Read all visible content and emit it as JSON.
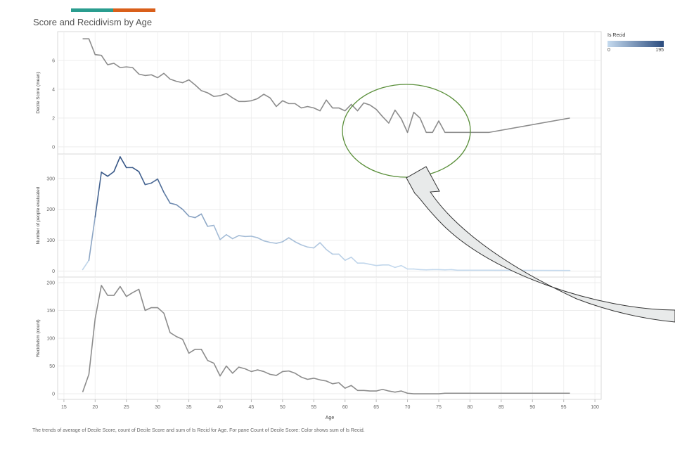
{
  "title": "Score and Recidivism by Age",
  "caption": "The trends of average of Decile Score, count of Decile Score and sum of Is Recid for Age.  For pane Count of Decile Score:  Color shows sum of Is Recid.",
  "accent_colors": [
    "#2a9d8f",
    "#d95f1a"
  ],
  "legend": {
    "title": "Is Recid",
    "min_label": "0",
    "max_label": "195",
    "color_low": "#c6dbef",
    "color_high": "#2b4c7e"
  },
  "annotation": {
    "ellipse_color": "#5a8f3a",
    "arrow_fill": "#e8eaea",
    "arrow_stroke": "#333333"
  },
  "chart_data": {
    "type": "line",
    "x_label": "Age",
    "x_range": [
      14,
      101
    ],
    "x_ticks": [
      "15",
      "20",
      "25",
      "30",
      "35",
      "40",
      "45",
      "50",
      "55",
      "60",
      "65",
      "70",
      "75",
      "80",
      "85",
      "90",
      "95",
      "100"
    ],
    "ages": [
      18,
      19,
      20,
      21,
      22,
      23,
      24,
      25,
      26,
      27,
      28,
      29,
      30,
      31,
      32,
      33,
      34,
      35,
      36,
      37,
      38,
      39,
      40,
      41,
      42,
      43,
      44,
      45,
      46,
      47,
      48,
      49,
      50,
      51,
      52,
      53,
      54,
      55,
      56,
      57,
      58,
      59,
      60,
      61,
      62,
      63,
      64,
      65,
      66,
      67,
      68,
      69,
      70,
      71,
      72,
      73,
      74,
      75,
      76,
      77,
      78,
      79,
      80,
      83,
      96
    ],
    "panes": [
      {
        "ylabel": "Decile Score (mean)",
        "yrange": [
          -0.3,
          7.8
        ],
        "yticks": [
          "0",
          "2",
          "4",
          "6"
        ],
        "line_color": "#8c8c8c",
        "values": [
          7.5,
          7.5,
          6.4,
          6.35,
          5.7,
          5.8,
          5.5,
          5.55,
          5.5,
          5.05,
          4.95,
          5.0,
          4.8,
          5.1,
          4.7,
          4.55,
          4.45,
          4.65,
          4.3,
          3.9,
          3.75,
          3.5,
          3.55,
          3.7,
          3.4,
          3.15,
          3.15,
          3.2,
          3.35,
          3.65,
          3.4,
          2.8,
          3.2,
          3.0,
          3.0,
          2.7,
          2.8,
          2.7,
          2.5,
          3.25,
          2.7,
          2.7,
          2.5,
          2.95,
          2.5,
          3.05,
          2.9,
          2.6,
          2.1,
          1.65,
          2.55,
          1.95,
          1.0,
          2.4,
          2.0,
          1.0,
          1.0,
          1.8,
          1.0,
          1.0,
          1.0,
          1.0,
          1.0,
          1.0,
          2.0
        ]
      },
      {
        "ylabel": "Number of people evaluated",
        "yrange": [
          -10,
          370
        ],
        "yticks": [
          "0",
          "100",
          "200",
          "300"
        ],
        "color_by": "is_recid",
        "values": [
          5,
          35,
          175,
          320,
          307,
          322,
          370,
          335,
          335,
          322,
          280,
          285,
          298,
          255,
          220,
          215,
          200,
          178,
          173,
          185,
          145,
          148,
          102,
          118,
          105,
          115,
          112,
          113,
          108,
          98,
          93,
          90,
          95,
          108,
          95,
          85,
          78,
          75,
          92,
          70,
          55,
          55,
          35,
          45,
          26,
          26,
          22,
          18,
          20,
          20,
          12,
          18,
          7,
          7,
          5,
          4,
          5,
          5,
          4,
          5,
          3,
          3,
          3,
          3,
          2
        ],
        "recid": [
          3,
          17,
          130,
          195,
          175,
          175,
          195,
          175,
          180,
          185,
          150,
          155,
          155,
          145,
          110,
          105,
          100,
          75,
          80,
          80,
          60,
          55,
          33,
          50,
          37,
          48,
          45,
          40,
          42,
          40,
          35,
          33,
          40,
          42,
          38,
          32,
          27,
          28,
          25,
          24,
          19,
          20,
          10,
          15,
          6,
          6,
          5,
          5,
          8,
          5,
          3,
          5,
          1,
          1,
          1,
          1,
          1,
          1,
          1,
          1,
          1,
          1,
          1,
          1,
          1
        ]
      },
      {
        "ylabel": "Recidivism (count)",
        "yrange": [
          -5,
          205
        ],
        "yticks": [
          "0",
          "50",
          "100",
          "150",
          "200"
        ],
        "line_color": "#8c8c8c",
        "values": [
          3,
          35,
          135,
          195,
          177,
          177,
          193,
          175,
          182,
          188,
          150,
          155,
          155,
          145,
          110,
          103,
          98,
          73,
          80,
          80,
          60,
          55,
          32,
          50,
          37,
          48,
          45,
          40,
          43,
          40,
          35,
          33,
          40,
          41,
          37,
          30,
          26,
          28,
          25,
          23,
          18,
          20,
          10,
          15,
          6,
          6,
          5,
          5,
          8,
          5,
          3,
          5,
          1,
          0,
          0,
          0,
          0,
          0,
          1,
          1,
          1,
          1,
          1,
          1,
          1
        ]
      }
    ]
  }
}
